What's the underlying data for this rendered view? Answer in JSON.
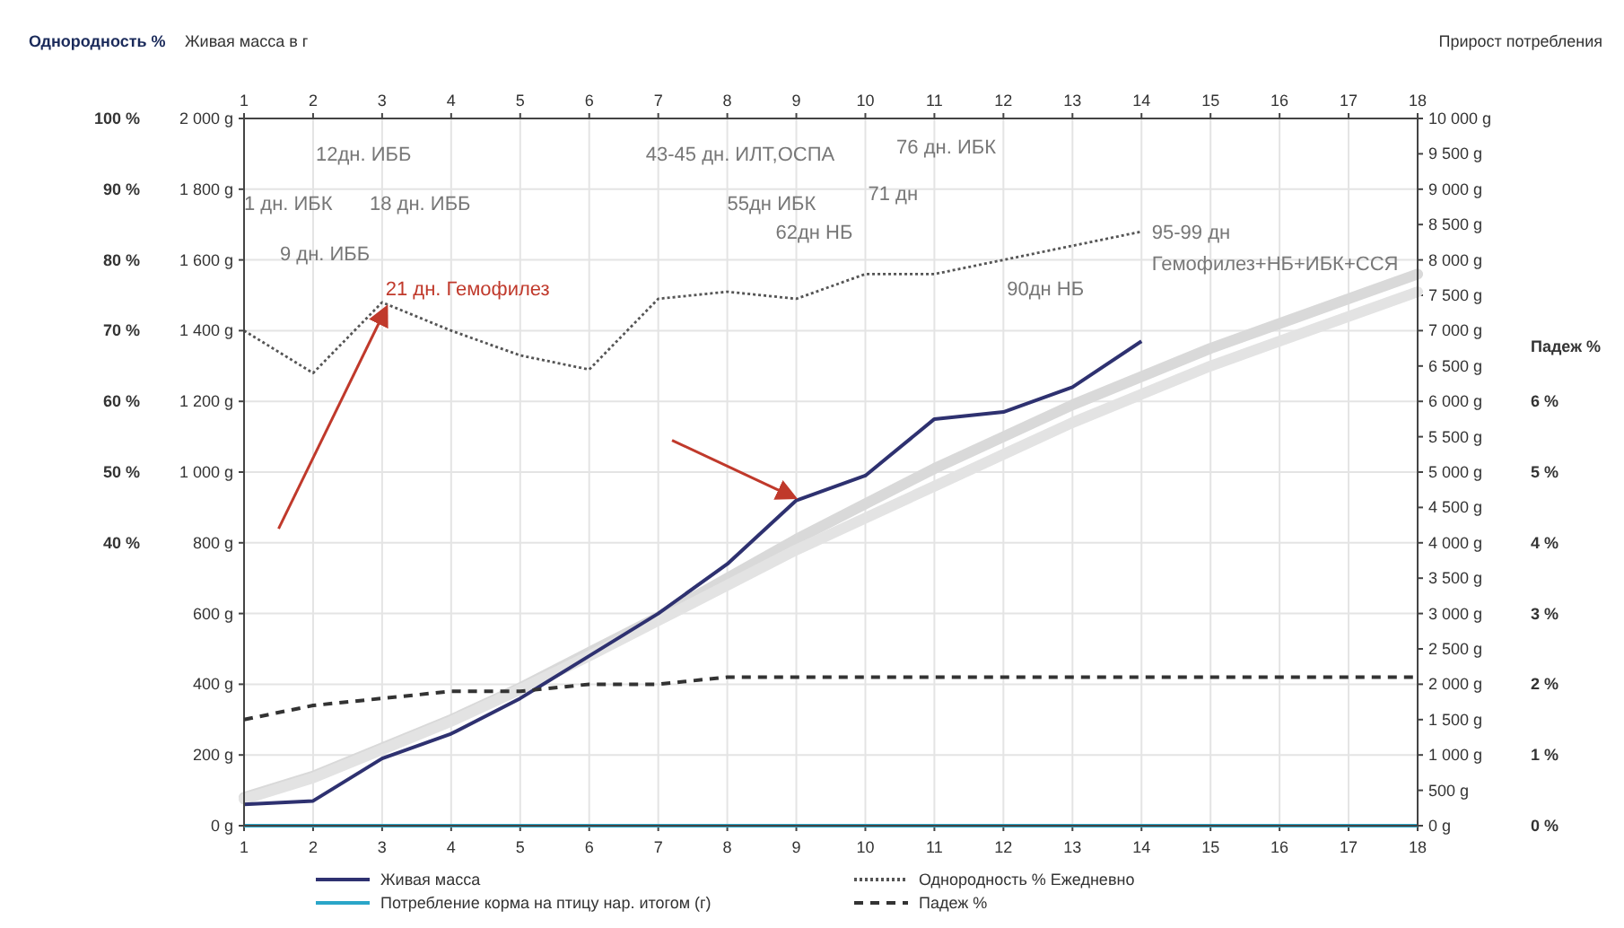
{
  "chart_data": [
    {
      "type": "line",
      "ylabel": "Живая масса в г",
      "y2label": "Прирост потребления",
      "y3label": "Однородность %",
      "x": [
        1,
        2,
        3,
        4,
        5,
        6,
        7,
        8,
        9,
        10,
        11,
        12,
        13,
        14,
        15,
        16,
        17,
        18
      ],
      "xlim": [
        1,
        18
      ],
      "xticks": [
        1,
        2,
        3,
        4,
        5,
        6,
        7,
        8,
        9,
        10,
        11,
        12,
        13,
        14,
        15,
        16,
        17,
        18
      ],
      "x2lim": [
        1,
        18
      ],
      "x2ticks": [
        1,
        2,
        3,
        4,
        5,
        6,
        7,
        8,
        9,
        10,
        11,
        12,
        13,
        14,
        15,
        16,
        17,
        18
      ],
      "ylim": [
        0,
        2000
      ],
      "yticks": [
        {
          "value": 0,
          "label": "0 g"
        },
        {
          "value": 200,
          "label": "200 g"
        },
        {
          "value": 400,
          "label": "400 g"
        },
        {
          "value": 600,
          "label": "600 g"
        },
        {
          "value": 800,
          "label": "800 g"
        },
        {
          "value": 1000,
          "label": "1 000 g"
        },
        {
          "value": 1200,
          "label": "1 200 g"
        },
        {
          "value": 1400,
          "label": "1 400 g"
        },
        {
          "value": 1600,
          "label": "1 600 g"
        },
        {
          "value": 1800,
          "label": "1 800 g"
        },
        {
          "value": 2000,
          "label": "2 000 g"
        }
      ],
      "y2lim": [
        0,
        10000
      ],
      "y2ticks": [
        {
          "value": 0,
          "label": "0 g"
        },
        {
          "value": 500,
          "label": "500 g"
        },
        {
          "value": 1000,
          "label": "1 000 g"
        },
        {
          "value": 1500,
          "label": "1 500 g"
        },
        {
          "value": 2000,
          "label": "2 000 g"
        },
        {
          "value": 2500,
          "label": "2 500 g"
        },
        {
          "value": 3000,
          "label": "3 000 g"
        },
        {
          "value": 3500,
          "label": "3 500 g"
        },
        {
          "value": 4000,
          "label": "4 000 g"
        },
        {
          "value": 4500,
          "label": "4 500 g"
        },
        {
          "value": 5000,
          "label": "5 000 g"
        },
        {
          "value": 5500,
          "label": "5 500 g"
        },
        {
          "value": 6000,
          "label": "6 000 g"
        },
        {
          "value": 6500,
          "label": "6 500 g"
        },
        {
          "value": 7000,
          "label": "7 000 g"
        },
        {
          "value": 7500,
          "label": "7 500 g"
        },
        {
          "value": 8000,
          "label": "8 000 g"
        },
        {
          "value": 8500,
          "label": "8 500 g"
        },
        {
          "value": 9000,
          "label": "9 000 g"
        },
        {
          "value": 9500,
          "label": "9 500 g"
        },
        {
          "value": 10000,
          "label": "10 000 g"
        }
      ],
      "y3lim": [
        0,
        100
      ],
      "y3ticks": [
        {
          "value": 40,
          "label": "40 %"
        },
        {
          "value": 50,
          "label": "50 %"
        },
        {
          "value": 60,
          "label": "60 %"
        },
        {
          "value": 70,
          "label": "70 %"
        },
        {
          "value": 80,
          "label": "80 %"
        },
        {
          "value": 90,
          "label": "90 %"
        },
        {
          "value": 100,
          "label": "100 %"
        }
      ],
      "grid": true,
      "legend": "bottom",
      "series": [
        {
          "color": "#d9d9d9",
          "line_style": "solid",
          "values": [
            80,
            140,
            220,
            300,
            390,
            490,
            590,
            700,
            810,
            910,
            1010,
            1100,
            1190,
            1270,
            1350,
            1420,
            1490,
            1560
          ]
        },
        {
          "color": "#e3e3e3",
          "line_style": "solid",
          "values": [
            75,
            135,
            215,
            295,
            385,
            480,
            580,
            680,
            780,
            870,
            960,
            1050,
            1140,
            1220,
            1300,
            1370,
            1440,
            1510
          ]
        },
        {
          "name": "Живая масса",
          "color": "#2e3170",
          "line_style": "solid",
          "values": [
            60,
            70,
            190,
            260,
            360,
            480,
            600,
            740,
            920,
            990,
            1150,
            1170,
            1240,
            1370,
            null,
            null,
            null,
            null
          ]
        },
        {
          "name": "Однородность % Ежедневно",
          "color": "#555555",
          "line_style": "dotted",
          "axis": "y3",
          "values": [
            70,
            64,
            74,
            70,
            66.5,
            64.5,
            74.5,
            75.5,
            74.5,
            78,
            78,
            80,
            82,
            84,
            null,
            null,
            null,
            null
          ]
        },
        {
          "name": "Потребление корма на птицу нар. итогом (г)",
          "color": "#2aa6c8",
          "line_style": "solid",
          "axis": "y2",
          "values": [
            0,
            0,
            0,
            0,
            0,
            0,
            0,
            0,
            0,
            0,
            0,
            0,
            0,
            0,
            0,
            0,
            0,
            0
          ]
        }
      ],
      "annotations": [
        "12дн. ИББ",
        "1 дн. ИБК",
        "18 дн. ИББ",
        "9 дн. ИББ",
        "21 дн. Гемофилез",
        "43-45 дн. ИЛТ,ОСПА",
        "76 дн. ИБК",
        "55дн ИБК",
        "71 дн",
        "62дн НБ",
        "95-99 дн",
        "Гемофилез+НБ+ИБК+ССЯ",
        "90дн НБ"
      ]
    },
    {
      "type": "line",
      "ylabel": "Падеж %",
      "tick_labels": "y",
      "legend": "bottom",
      "x": [
        1,
        2,
        3,
        4,
        5,
        6,
        7,
        8,
        9,
        10,
        11,
        12,
        13,
        14,
        15,
        16,
        17,
        18
      ],
      "xlim": [
        1,
        18
      ],
      "ylim": [
        0,
        10
      ],
      "yticks": [
        {
          "value": 0,
          "label": "0 %"
        },
        {
          "value": 1,
          "label": "1 %"
        },
        {
          "value": 2,
          "label": "2 %"
        },
        {
          "value": 3,
          "label": "3 %"
        },
        {
          "value": 4,
          "label": "4 %"
        },
        {
          "value": 5,
          "label": "5 %"
        },
        {
          "value": 6,
          "label": "6 %"
        }
      ],
      "series": [
        {
          "name": "Падеж %",
          "color": "#333333",
          "line_style": "dashed",
          "values": [
            1.5,
            1.7,
            1.8,
            1.9,
            1.9,
            2.0,
            2.0,
            2.1,
            2.1,
            2.1,
            2.1,
            2.1,
            2.1,
            2.1,
            2.1,
            2.1,
            2.1,
            2.1
          ]
        }
      ]
    }
  ]
}
